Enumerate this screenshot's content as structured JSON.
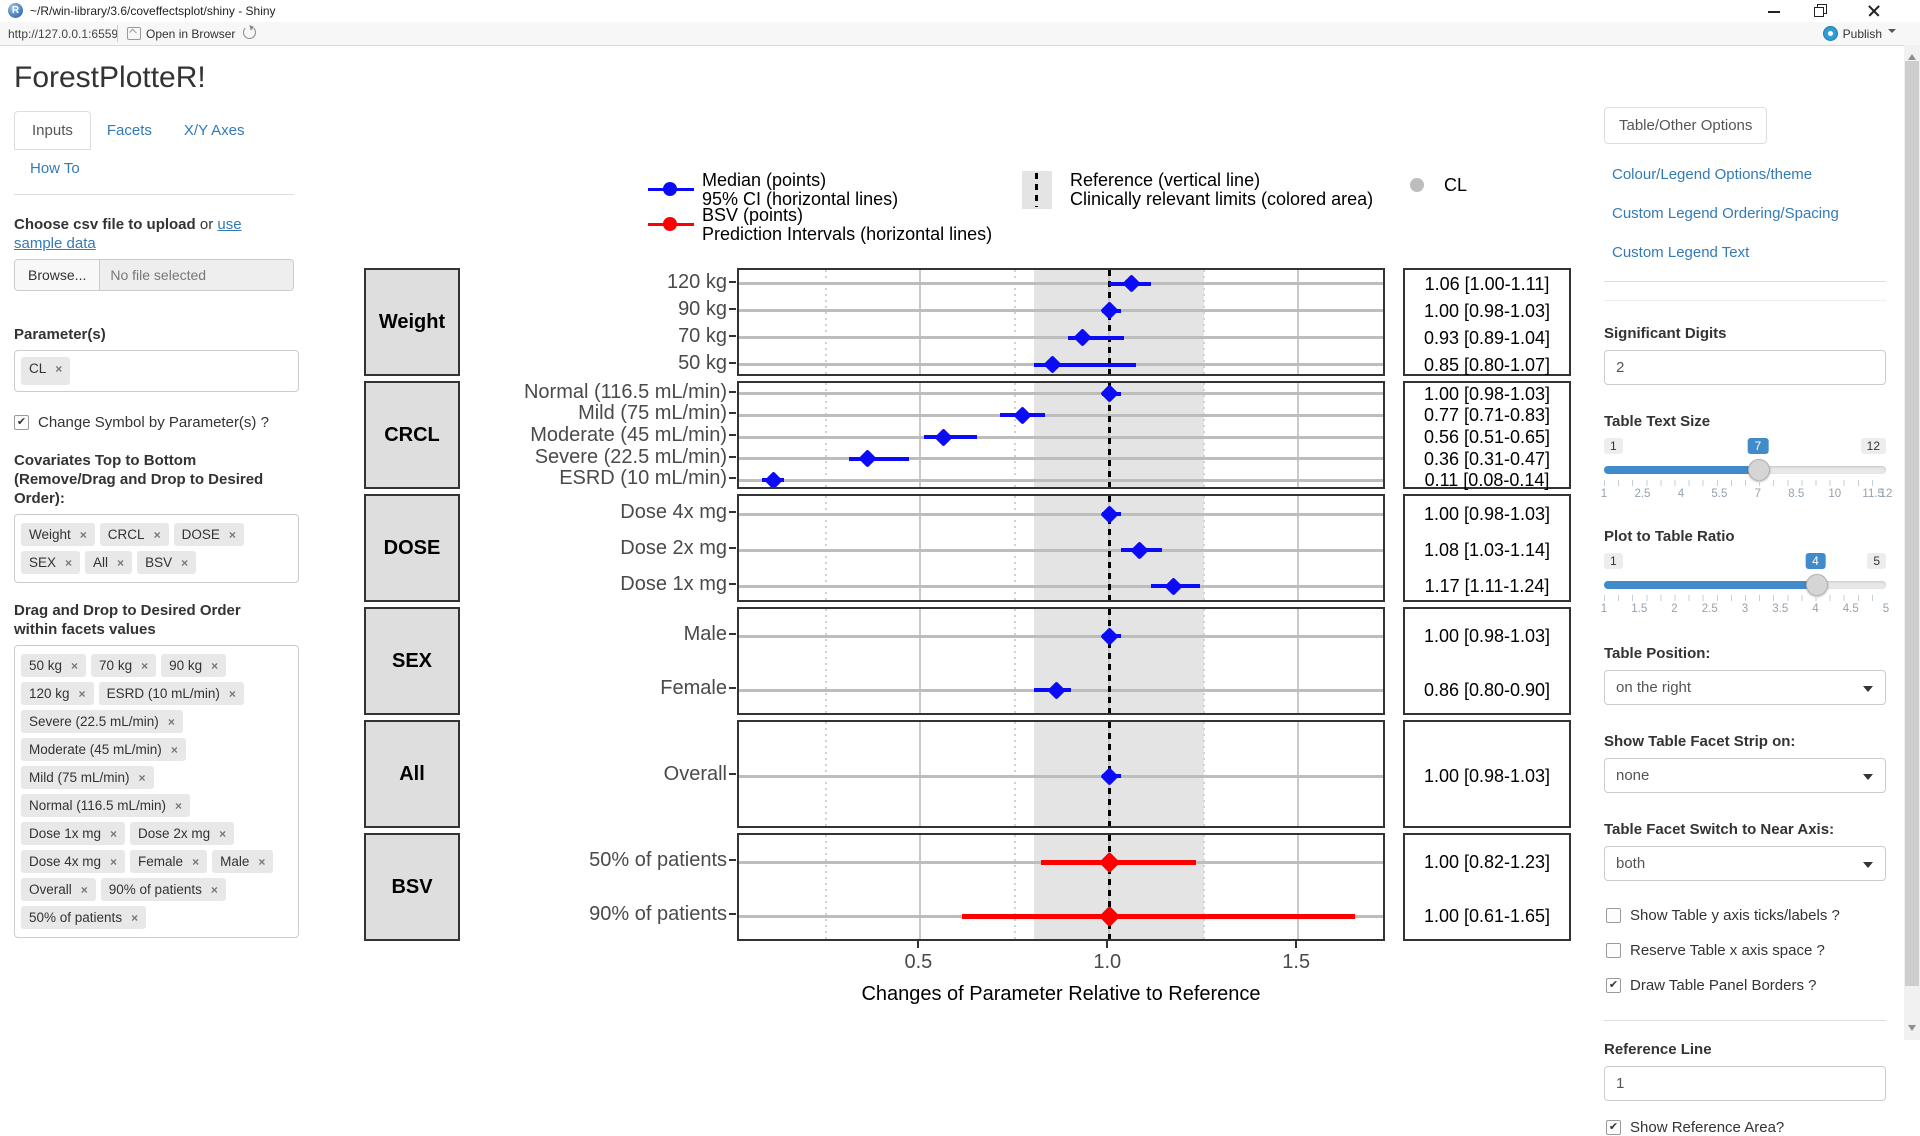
{
  "window": {
    "title": "~/R/win-library/3.6/coveffectsplot/shiny - Shiny",
    "url": "http://127.0.0.1:6559",
    "open_in_browser": "Open in Browser",
    "publish": "Publish"
  },
  "sidebar": {
    "app_title": "ForestPlotteR!",
    "tabs": {
      "inputs": "Inputs",
      "facets": "Facets",
      "xy_axes": "X/Y Axes",
      "how_to": "How To"
    },
    "upload_bold": "Choose csv file to upload",
    "upload_or": " or ",
    "upload_link": "use sample data",
    "browse_button": "Browse...",
    "file_placeholder": "No file selected",
    "parameters_label": "Parameter(s)",
    "parameter_tags": [
      "CL"
    ],
    "change_symbol_label": "Change Symbol by Parameter(s) ?",
    "covariates_label": "Covariates Top to Bottom (Remove/Drag and Drop to Desired Order):",
    "covariate_tags": [
      "Weight",
      "CRCL",
      "DOSE",
      "SEX",
      "All",
      "BSV"
    ],
    "facet_order_label": "Drag and Drop to Desired Order within facets values",
    "facet_value_tags": [
      "50 kg",
      "70 kg",
      "90 kg",
      "120 kg",
      "ESRD (10 mL/min)",
      "Severe (22.5 mL/min)",
      "Moderate (45 mL/min)",
      "Mild (75 mL/min)",
      "Normal (116.5 mL/min)",
      "Dose 1x mg",
      "Dose 2x mg",
      "Dose 4x mg",
      "Female",
      "Male",
      "Overall",
      "90% of patients",
      "50% of patients"
    ]
  },
  "legend": {
    "median_line1": "Median (points)",
    "median_line2": "95% CI (horizontal lines)",
    "bsv_line1": "BSV (points)",
    "bsv_line2": "Prediction Intervals (horizontal lines)",
    "ref_line1": "Reference (vertical line)",
    "ref_line2": "Clinically relevant limits (colored area)",
    "shape_label": "CL"
  },
  "chart_data": {
    "type": "forest",
    "xlabel": "Changes of Parameter Relative to Reference",
    "x_ticks": [
      0.5,
      1.0,
      1.5
    ],
    "x_domain": [
      0.02,
      1.735
    ],
    "reference_line": 1.0,
    "reference_area": [
      0.8,
      1.25
    ],
    "major_gridlines": [
      0.5,
      1.0,
      1.5
    ],
    "minor_gridlines": [
      0.25,
      0.75,
      1.25
    ],
    "facets": [
      {
        "facet": "Weight",
        "series": "median",
        "rows": [
          {
            "label": "120 kg",
            "mid": 1.06,
            "lo": 1.0,
            "hi": 1.11,
            "table": "1.06 [1.00-1.11]"
          },
          {
            "label": "90 kg",
            "mid": 1.0,
            "lo": 0.98,
            "hi": 1.03,
            "table": "1.00 [0.98-1.03]"
          },
          {
            "label": "70 kg",
            "mid": 0.93,
            "lo": 0.89,
            "hi": 1.04,
            "table": "0.93 [0.89-1.04]"
          },
          {
            "label": "50 kg",
            "mid": 0.85,
            "lo": 0.8,
            "hi": 1.07,
            "table": "0.85 [0.80-1.07]"
          }
        ]
      },
      {
        "facet": "CRCL",
        "series": "median",
        "rows": [
          {
            "label": "Normal (116.5 mL/min)",
            "mid": 1.0,
            "lo": 0.98,
            "hi": 1.03,
            "table": "1.00 [0.98-1.03]"
          },
          {
            "label": "Mild (75 mL/min)",
            "mid": 0.77,
            "lo": 0.71,
            "hi": 0.83,
            "table": "0.77 [0.71-0.83]"
          },
          {
            "label": "Moderate (45 mL/min)",
            "mid": 0.56,
            "lo": 0.51,
            "hi": 0.65,
            "table": "0.56 [0.51-0.65]"
          },
          {
            "label": "Severe (22.5 mL/min)",
            "mid": 0.36,
            "lo": 0.31,
            "hi": 0.47,
            "table": "0.36 [0.31-0.47]"
          },
          {
            "label": "ESRD (10 mL/min)",
            "mid": 0.11,
            "lo": 0.08,
            "hi": 0.14,
            "table": "0.11 [0.08-0.14]"
          }
        ]
      },
      {
        "facet": "DOSE",
        "series": "median",
        "rows": [
          {
            "label": "Dose 4x mg",
            "mid": 1.0,
            "lo": 0.98,
            "hi": 1.03,
            "table": "1.00 [0.98-1.03]"
          },
          {
            "label": "Dose 2x mg",
            "mid": 1.08,
            "lo": 1.03,
            "hi": 1.14,
            "table": "1.08 [1.03-1.14]"
          },
          {
            "label": "Dose 1x mg",
            "mid": 1.17,
            "lo": 1.11,
            "hi": 1.24,
            "table": "1.17 [1.11-1.24]"
          }
        ]
      },
      {
        "facet": "SEX",
        "series": "median",
        "rows": [
          {
            "label": "Male",
            "mid": 1.0,
            "lo": 0.98,
            "hi": 1.03,
            "table": "1.00 [0.98-1.03]"
          },
          {
            "label": "Female",
            "mid": 0.86,
            "lo": 0.8,
            "hi": 0.9,
            "table": "0.86 [0.80-0.90]"
          }
        ]
      },
      {
        "facet": "All",
        "series": "median",
        "rows": [
          {
            "label": "Overall",
            "mid": 1.0,
            "lo": 0.98,
            "hi": 1.03,
            "table": "1.00 [0.98-1.03]"
          }
        ]
      },
      {
        "facet": "BSV",
        "series": "bsv",
        "rows": [
          {
            "label": "50% of patients",
            "mid": 1.0,
            "lo": 0.82,
            "hi": 1.23,
            "table": "1.00 [0.82-1.23]"
          },
          {
            "label": "90% of patients",
            "mid": 1.0,
            "lo": 0.61,
            "hi": 1.65,
            "table": "1.00 [0.61-1.65]"
          }
        ]
      }
    ]
  },
  "options_panel": {
    "tab": "Table/Other Options",
    "links": [
      "Colour/Legend Options/theme",
      "Custom Legend Ordering/Spacing",
      "Custom Legend Text"
    ],
    "significant_digits": {
      "label": "Significant Digits",
      "value": "2"
    },
    "table_text_size": {
      "label": "Table Text Size",
      "min": 1,
      "max": 12,
      "value": 7,
      "ticks": [
        1,
        2.5,
        4,
        5.5,
        7,
        8.5,
        10,
        11.5,
        12
      ]
    },
    "plot_table_ratio": {
      "label": "Plot to Table Ratio",
      "min": 1,
      "max": 5,
      "value": 4,
      "ticks": [
        1,
        1.5,
        2,
        2.5,
        3,
        3.5,
        4,
        4.5,
        5
      ]
    },
    "table_position": {
      "label": "Table Position:",
      "value": "on the right"
    },
    "facet_strip": {
      "label": "Show Table Facet Strip on:",
      "value": "none"
    },
    "facet_switch": {
      "label": "Table Facet Switch to Near Axis:",
      "value": "both"
    },
    "checkboxes": [
      {
        "label": "Show Table y axis ticks/labels ?",
        "checked": false
      },
      {
        "label": "Reserve Table x axis space ?",
        "checked": false
      },
      {
        "label": "Draw Table Panel Borders ?",
        "checked": true
      }
    ],
    "reference_line": {
      "label": "Reference Line",
      "value": "1"
    },
    "partial_checkbox": {
      "label": "Show Reference Area?",
      "checked": true
    }
  },
  "colors": {
    "median_point": "#0b0bf5",
    "bsv_point": "#ff0000",
    "band": "#e4e4e4",
    "strip_bg": "#dedede",
    "panel_border": "#333333",
    "grid_major": "#c9c9c9",
    "grid_minor": "#d2d2d2",
    "row_line": "#bdbdbd",
    "shape_legend_gray": "#bdbdbd",
    "link": "#337ab7",
    "slider_accent": "#428bca"
  }
}
